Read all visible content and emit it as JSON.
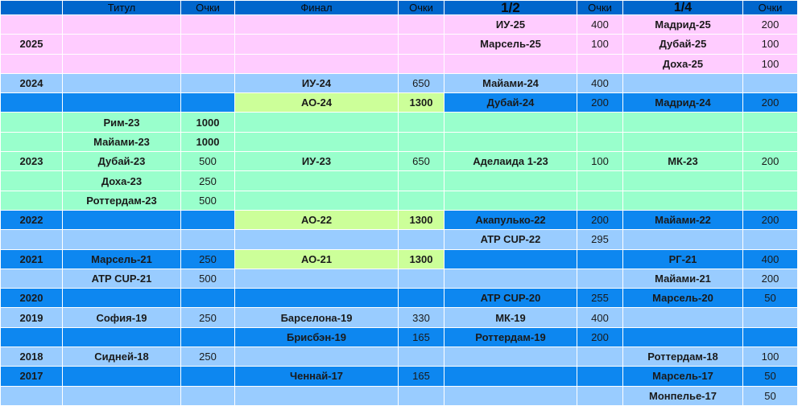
{
  "columns": [
    "",
    "Титул",
    "Очки",
    "Финал",
    "Очки",
    "1/2",
    "Очки",
    "1/4",
    "Очки"
  ],
  "header_style": [
    "normal",
    "normal",
    "normal",
    "normal",
    "normal",
    "big",
    "normal",
    "big",
    "normal"
  ],
  "colors": {
    "header": "#0066cc",
    "pink_2025": "#ffccff",
    "light_blue": "#99ccff",
    "blue": "#0d87f0",
    "mint_2023": "#99ffcc",
    "lime_ao": "#ccff99"
  },
  "rows": [
    {
      "band": "pink",
      "cells": [
        "",
        "",
        "",
        "",
        "",
        "ИУ-25",
        "400",
        "Мадрид-25",
        "200"
      ]
    },
    {
      "band": "pink",
      "cells": [
        "2025",
        "",
        "",
        "",
        "",
        "Марсель-25",
        "100",
        "Дубай-25",
        "100"
      ]
    },
    {
      "band": "pink",
      "cells": [
        "",
        "",
        "",
        "",
        "",
        "",
        "",
        "Доха-25",
        "100"
      ]
    },
    {
      "band": "light",
      "cells": [
        "2024",
        "",
        "",
        "ИУ-24",
        "650",
        "Майами-24",
        "400",
        "",
        ""
      ]
    },
    {
      "band": "dark",
      "lime": [
        3,
        4
      ],
      "bold_pts": [
        4
      ],
      "cells": [
        "",
        "",
        "",
        "АО-24",
        "1300",
        "Дубай-24",
        "200",
        "Мадрид-24",
        "200"
      ]
    },
    {
      "band": "green",
      "bold_pts": [
        2
      ],
      "cells": [
        "",
        "Рим-23",
        "1000",
        "",
        "",
        "",
        "",
        "",
        ""
      ]
    },
    {
      "band": "green",
      "bold_pts": [
        2
      ],
      "cells": [
        "",
        "Майами-23",
        "1000",
        "",
        "",
        "",
        "",
        "",
        ""
      ]
    },
    {
      "band": "green",
      "cells": [
        "2023",
        "Дубай-23",
        "500",
        "ИУ-23",
        "650",
        "Аделаида 1-23",
        "100",
        "МК-23",
        "200"
      ]
    },
    {
      "band": "green",
      "cells": [
        "",
        "Доха-23",
        "250",
        "",
        "",
        "",
        "",
        "",
        ""
      ]
    },
    {
      "band": "green",
      "cells": [
        "",
        "Роттердам-23",
        "500",
        "",
        "",
        "",
        "",
        "",
        ""
      ]
    },
    {
      "band": "dark",
      "lime": [
        3,
        4
      ],
      "bold_pts": [
        4
      ],
      "cells": [
        "2022",
        "",
        "",
        "АО-22",
        "1300",
        "Акапулько-22",
        "200",
        "Майами-22",
        "200"
      ]
    },
    {
      "band": "light",
      "cells": [
        "",
        "",
        "",
        "",
        "",
        "ATP CUP-22",
        "295",
        "",
        ""
      ]
    },
    {
      "band": "dark",
      "lime": [
        3,
        4
      ],
      "bold_pts": [
        4
      ],
      "cells": [
        "2021",
        "Марсель-21",
        "250",
        "АО-21",
        "1300",
        "",
        "",
        "РГ-21",
        "400"
      ]
    },
    {
      "band": "light",
      "cells": [
        "",
        "ATP CUP-21",
        "500",
        "",
        "",
        "",
        "",
        "Майами-21",
        "200"
      ]
    },
    {
      "band": "dark",
      "cells": [
        "2020",
        "",
        "",
        "",
        "",
        "ATP CUP-20",
        "255",
        "Марсель-20",
        "50"
      ]
    },
    {
      "band": "light",
      "cells": [
        "2019",
        "София-19",
        "250",
        "Барселона-19",
        "330",
        "МК-19",
        "400",
        "",
        ""
      ]
    },
    {
      "band": "dark",
      "cells": [
        "",
        "",
        "",
        "Брисбэн-19",
        "165",
        "Роттердам-19",
        "200",
        "",
        ""
      ]
    },
    {
      "band": "light",
      "cells": [
        "2018",
        "Сидней-18",
        "250",
        "",
        "",
        "",
        "",
        "Роттердам-18",
        "100"
      ]
    },
    {
      "band": "dark",
      "cells": [
        "2017",
        "",
        "",
        "Ченнай-17",
        "165",
        "",
        "",
        "Марсель-17",
        "50"
      ]
    },
    {
      "band": "light",
      "cells": [
        "",
        "",
        "",
        "",
        "",
        "",
        "",
        "Монпелье-17",
        "50"
      ]
    }
  ]
}
